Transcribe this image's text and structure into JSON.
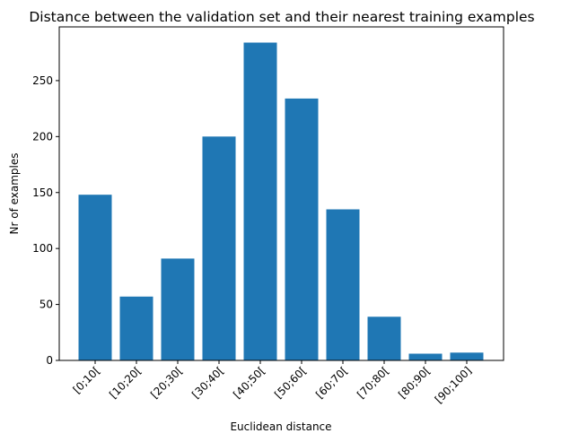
{
  "chart_data": {
    "type": "bar",
    "title": "Distance between the validation set and their nearest training examples",
    "xlabel": "Euclidean distance",
    "ylabel": "Nr of examples",
    "categories": [
      "[0;10[",
      "[10;20[",
      "[20;30[",
      "[30;40[",
      "[40;50[",
      "[50;60[",
      "[60;70[",
      "[70;80[",
      "[80;90[",
      "[90;100]"
    ],
    "values": [
      148,
      57,
      91,
      200,
      284,
      234,
      135,
      39,
      6,
      7
    ],
    "ylim": [
      0,
      298
    ],
    "yticks": [
      0,
      50,
      100,
      150,
      200,
      250
    ],
    "grid": false,
    "bar_color": "#1f77b4"
  }
}
